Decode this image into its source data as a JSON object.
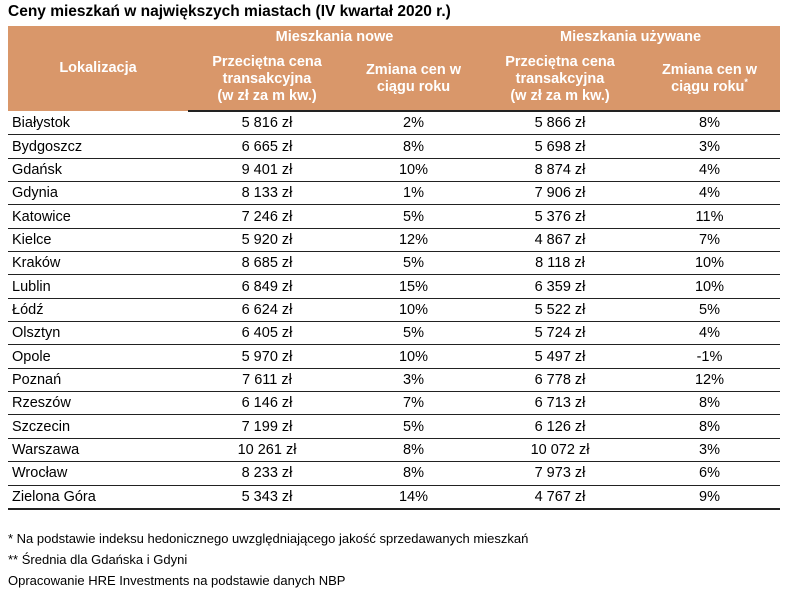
{
  "title": "Ceny mieszkań w największych miastach (IV kwartał 2020 r.)",
  "header": {
    "location": "Lokalizacja",
    "group_new": "Mieszkania nowe",
    "group_used": "Mieszkania używane",
    "avg_price_line1": "Przeciętna cena",
    "avg_price_line2": "transakcyjna",
    "avg_price_line3": "(w zł za m kw.)",
    "change_line1": "Zmiana cen w",
    "change_line2": "ciągu roku",
    "change_used_sup": "*"
  },
  "rows": [
    {
      "city": "Białystok",
      "new_price": "5 816 zł",
      "new_change": "2%",
      "used_price": "5 866 zł",
      "used_change": "8%"
    },
    {
      "city": "Bydgoszcz",
      "new_price": "6 665 zł",
      "new_change": "8%",
      "used_price": "5 698 zł",
      "used_change": "3%"
    },
    {
      "city": "Gdańsk",
      "new_price": "9 401 zł",
      "new_change": "10%",
      "used_price": "8 874 zł",
      "used_change": "4%"
    },
    {
      "city": "Gdynia",
      "new_price": "8 133 zł",
      "new_change": "1%",
      "used_price": "7 906 zł",
      "used_change": "4%"
    },
    {
      "city": "Katowice",
      "new_price": "7 246 zł",
      "new_change": "5%",
      "used_price": "5 376 zł",
      "used_change": "11%"
    },
    {
      "city": "Kielce",
      "new_price": "5 920 zł",
      "new_change": "12%",
      "used_price": "4 867 zł",
      "used_change": "7%"
    },
    {
      "city": "Kraków",
      "new_price": "8 685 zł",
      "new_change": "5%",
      "used_price": "8 118 zł",
      "used_change": "10%"
    },
    {
      "city": "Lublin",
      "new_price": "6 849 zł",
      "new_change": "15%",
      "used_price": "6 359 zł",
      "used_change": "10%"
    },
    {
      "city": "Łódź",
      "new_price": "6 624 zł",
      "new_change": "10%",
      "used_price": "5 522 zł",
      "used_change": "5%"
    },
    {
      "city": "Olsztyn",
      "new_price": "6 405 zł",
      "new_change": "5%",
      "used_price": "5 724 zł",
      "used_change": "4%"
    },
    {
      "city": "Opole",
      "new_price": "5 970 zł",
      "new_change": "10%",
      "used_price": "5 497 zł",
      "used_change": "-1%"
    },
    {
      "city": "Poznań",
      "new_price": "7 611 zł",
      "new_change": "3%",
      "used_price": "6 778 zł",
      "used_change": "12%"
    },
    {
      "city": "Rzeszów",
      "new_price": "6 146 zł",
      "new_change": "7%",
      "used_price": "6 713 zł",
      "used_change": "8%"
    },
    {
      "city": "Szczecin",
      "new_price": "7 199 zł",
      "new_change": "5%",
      "used_price": "6 126 zł",
      "used_change": "8%"
    },
    {
      "city": "Warszawa",
      "new_price": "10 261 zł",
      "new_change": "8%",
      "used_price": "10 072 zł",
      "used_change": "3%"
    },
    {
      "city": "Wrocław",
      "new_price": "8 233 zł",
      "new_change": "8%",
      "used_price": "7 973 zł",
      "used_change": "6%"
    },
    {
      "city": "Zielona Góra",
      "new_price": "5 343 zł",
      "new_change": "14%",
      "used_price": "4 767 zł",
      "used_change": "9%"
    }
  ],
  "notes": {
    "note1": "* Na podstawie indeksu hedonicznego uwzględniającego jakość sprzedawanych mieszkań",
    "note2": "** Średnia dla Gdańska i Gdyni",
    "source": "Opracowanie HRE Investments na podstawie danych NBP"
  },
  "colors": {
    "header_bg": "#d9976a",
    "header_text": "#ffffff"
  }
}
